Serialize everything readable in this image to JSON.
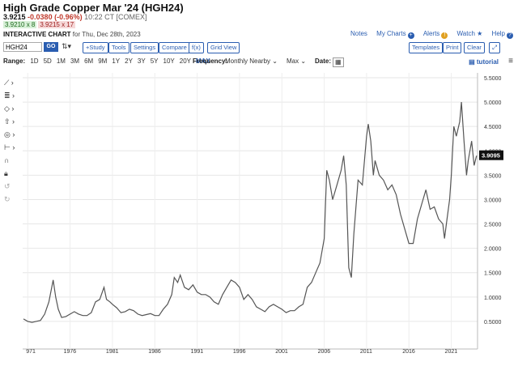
{
  "header": {
    "title": "High Grade Copper Mar '24 (HGH24)",
    "last": "3.9215",
    "change": "-0.0380 (-0.96%)",
    "time": "10:22 CT [COMEX]",
    "bid": "3.9210 x 8",
    "ask": "3.9215 x 17",
    "chart_label": "INTERACTIVE CHART",
    "chart_date": "for Thu, Dec 28th, 2023"
  },
  "links": {
    "notes": "Notes",
    "my_charts": "My Charts",
    "alerts": "Alerts",
    "watch": "Watch",
    "help": "Help"
  },
  "toolbar": {
    "symbol_value": "HGH24",
    "go": "GO",
    "study": "+Study",
    "tools": "Tools",
    "settings": "Settings",
    "compare": "Compare",
    "fx": "f(x)",
    "grid_view": "Grid View",
    "templates": "Templates",
    "print": "Print",
    "clear": "Clear"
  },
  "range_bar": {
    "range_label": "Range:",
    "ranges": [
      "1D",
      "5D",
      "1M",
      "3M",
      "6M",
      "9M",
      "1Y",
      "2Y",
      "3Y",
      "5Y",
      "10Y",
      "20Y",
      "MAX"
    ],
    "active_range": "MAX",
    "frequency_label": "Frequency:",
    "frequency_value": "Monthly Nearby",
    "period_value": "Max",
    "date_label": "Date:",
    "tutorial": "tutorial"
  },
  "left_tools": [
    "line-tool-icon",
    "fibonacci-icon",
    "shape-icon",
    "arrow-icon",
    "gear-tool-icon",
    "measure-icon",
    "magnet-icon",
    "lock-icon",
    "undo-icon",
    "redo-icon"
  ],
  "colors": {
    "accent": "#2a5db0",
    "down": "#c0392b",
    "price_line": "#555555",
    "price_badge": "#111111"
  },
  "chart_data": {
    "type": "line",
    "ylim": [
      0.0,
      5.5
    ],
    "y_ticks": [
      "5.5000",
      "5.0000",
      "4.5000",
      "4.0000",
      "3.5000",
      "3.0000",
      "2.5000",
      "2.0000",
      "1.5000",
      "1.0000",
      "0.5000"
    ],
    "x_ticks": [
      "971",
      "1976",
      "1981",
      "1986",
      "1991",
      "1996",
      "2001",
      "2006",
      "2011",
      "2016",
      "2021"
    ],
    "last_price_label": "3.9095",
    "series": [
      {
        "x": [
          1970.5,
          1971.0,
          1971.5,
          1972.0,
          1972.5,
          1973.0,
          1973.5,
          1974.0,
          1974.3,
          1974.6,
          1975.0,
          1975.5,
          1976.0,
          1976.5,
          1977.0,
          1977.5,
          1978.0,
          1978.5,
          1979.0,
          1979.5,
          1980.0,
          1980.3,
          1980.7,
          1981.0,
          1981.5,
          1982.0,
          1982.5,
          1983.0,
          1983.5,
          1984.0,
          1984.5,
          1985.0,
          1985.5,
          1986.0,
          1986.5,
          1987.0,
          1987.5,
          1988.0,
          1988.3,
          1988.7,
          1989.0,
          1989.5,
          1990.0,
          1990.5,
          1991.0,
          1991.5,
          1992.0,
          1992.5,
          1993.0,
          1993.5,
          1994.0,
          1994.5,
          1995.0,
          1995.5,
          1996.0,
          1996.5,
          1997.0,
          1997.5,
          1998.0,
          1998.5,
          1999.0,
          1999.5,
          2000.0,
          2000.5,
          2001.0,
          2001.5,
          2002.0,
          2002.5,
          2003.0,
          2003.5,
          2004.0,
          2004.5,
          2005.0,
          2005.5,
          2006.0,
          2006.3,
          2006.6,
          2007.0,
          2007.5,
          2008.0,
          2008.3,
          2008.6,
          2008.9,
          2009.2,
          2009.5,
          2010.0,
          2010.5,
          2011.0,
          2011.2,
          2011.5,
          2011.8,
          2012.0,
          2012.5,
          2013.0,
          2013.5,
          2014.0,
          2014.5,
          2015.0,
          2015.5,
          2016.0,
          2016.5,
          2017.0,
          2017.5,
          2018.0,
          2018.5,
          2019.0,
          2019.5,
          2020.0,
          2020.2,
          2020.5,
          2020.8,
          2021.0,
          2021.3,
          2021.6,
          2022.0,
          2022.2,
          2022.5,
          2022.8,
          2023.0,
          2023.4,
          2023.7,
          2023.99
        ],
        "values": [
          0.55,
          0.5,
          0.48,
          0.5,
          0.52,
          0.65,
          0.9,
          1.35,
          1.0,
          0.75,
          0.58,
          0.6,
          0.65,
          0.7,
          0.65,
          0.62,
          0.62,
          0.68,
          0.9,
          0.95,
          1.2,
          0.95,
          0.9,
          0.85,
          0.78,
          0.68,
          0.7,
          0.75,
          0.72,
          0.65,
          0.62,
          0.64,
          0.66,
          0.62,
          0.62,
          0.75,
          0.85,
          1.05,
          1.4,
          1.3,
          1.45,
          1.2,
          1.15,
          1.25,
          1.1,
          1.05,
          1.05,
          1.0,
          0.9,
          0.85,
          1.05,
          1.2,
          1.35,
          1.3,
          1.2,
          0.95,
          1.05,
          0.95,
          0.8,
          0.75,
          0.7,
          0.8,
          0.85,
          0.8,
          0.75,
          0.68,
          0.72,
          0.72,
          0.8,
          0.85,
          1.2,
          1.3,
          1.5,
          1.7,
          2.2,
          3.6,
          3.4,
          3.0,
          3.3,
          3.6,
          3.9,
          3.3,
          1.6,
          1.4,
          2.3,
          3.4,
          3.3,
          4.3,
          4.55,
          4.2,
          3.5,
          3.8,
          3.5,
          3.4,
          3.2,
          3.3,
          3.1,
          2.7,
          2.4,
          2.1,
          2.1,
          2.6,
          2.9,
          3.2,
          2.8,
          2.85,
          2.6,
          2.5,
          2.2,
          2.6,
          3.0,
          3.5,
          4.5,
          4.3,
          4.6,
          5.0,
          4.2,
          3.5,
          3.8,
          4.2,
          3.7,
          3.9
        ]
      }
    ]
  }
}
